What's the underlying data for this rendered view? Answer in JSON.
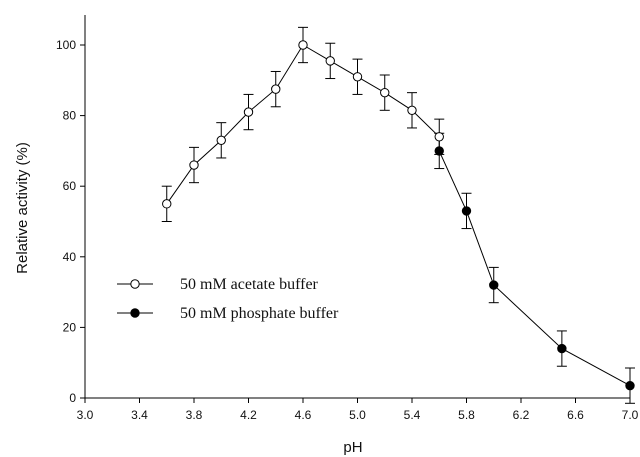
{
  "chart_data": {
    "type": "line",
    "title": "",
    "xlabel": "pH",
    "ylabel": "Relative activity (%)",
    "xlim": [
      3.0,
      7.0
    ],
    "ylim": [
      0,
      105
    ],
    "x_ticks": [
      3.0,
      3.4,
      3.8,
      4.2,
      4.6,
      5.0,
      5.4,
      5.8,
      6.2,
      6.6,
      7.0
    ],
    "x_tick_labels": [
      "3.0",
      "3.4",
      "3.8",
      "4.2",
      "4.6",
      "5.0",
      "5.4",
      "5.8",
      "6.2",
      "6.6",
      "7.0"
    ],
    "y_ticks": [
      0,
      20,
      40,
      60,
      80,
      100
    ],
    "y_tick_labels": [
      "0",
      "20",
      "40",
      "60",
      "80",
      "100"
    ],
    "grid": false,
    "legend_position": "left",
    "series": [
      {
        "name": "50 mM acetate buffer",
        "marker": "open-circle",
        "x": [
          3.6,
          3.8,
          4.0,
          4.2,
          4.4,
          4.6,
          4.8,
          5.0,
          5.2,
          5.4,
          5.6
        ],
        "y": [
          55,
          66,
          73,
          81,
          87.5,
          100,
          95.5,
          91,
          86.5,
          81.5,
          74
        ],
        "error": [
          5,
          5,
          5,
          5,
          5,
          5,
          5,
          5,
          5,
          5,
          5
        ]
      },
      {
        "name": "50 mM phosphate buffer",
        "marker": "filled-circle",
        "x": [
          5.6,
          5.8,
          6.0,
          6.5,
          7.0
        ],
        "y": [
          70,
          53,
          32,
          14,
          3.5
        ],
        "error": [
          5,
          5,
          5,
          5,
          5
        ]
      }
    ]
  }
}
